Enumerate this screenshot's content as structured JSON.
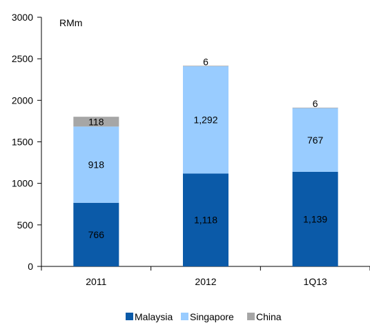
{
  "chart_data": {
    "type": "bar",
    "stacked": true,
    "unit_label": "RMm",
    "categories": [
      "2011",
      "2012",
      "1Q13"
    ],
    "series": [
      {
        "name": "Malaysia",
        "color": "#0b5aa8",
        "values": [
          766,
          1118,
          1139
        ],
        "labels": [
          "766",
          "1,118",
          "1,139"
        ]
      },
      {
        "name": "Singapore",
        "color": "#99ccff",
        "values": [
          918,
          1292,
          767
        ],
        "labels": [
          "918",
          "1,292",
          "767"
        ]
      },
      {
        "name": "China",
        "color": "#a6a6a6",
        "values": [
          118,
          6,
          6
        ],
        "labels": [
          "118",
          "6",
          "6"
        ]
      }
    ],
    "ylim": [
      0,
      3000
    ],
    "yticks": [
      "0",
      "500",
      "1000",
      "1500",
      "2000",
      "2500",
      "3000"
    ],
    "ytick_values": [
      0,
      500,
      1000,
      1500,
      2000,
      2500,
      3000
    ],
    "grid": false,
    "legend_position": "bottom-center"
  }
}
